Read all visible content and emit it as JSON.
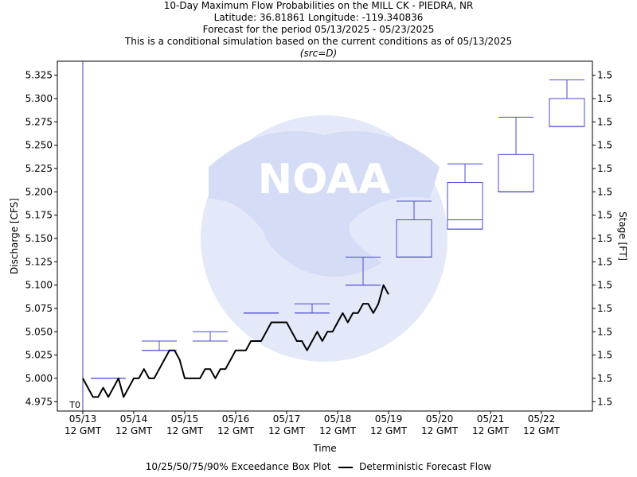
{
  "header": {
    "title": "10-Day Maximum Flow Probabilities on the MILL CK - PIEDRA, NR",
    "coords": "Latitude: 36.81861 Longitude: -119.340836",
    "period": "Forecast for the period 05/13/2025 - 05/23/2025",
    "note": "This is a conditional simulation based on the current conditions as of 05/13/2025",
    "src": "(src=D)"
  },
  "legend": {
    "box_label": "10/25/50/75/90% Exceedance Box Plot",
    "line_label": "Deterministic Forecast Flow"
  },
  "chart_data": {
    "type": "box+line",
    "xlabel": "Time",
    "ylabel": "Discharge [CFS]",
    "y2label": "Stage [FT]",
    "ylim": [
      4.965,
      5.34
    ],
    "left_ticks": [
      "4.975",
      "5.000",
      "5.025",
      "5.050",
      "5.075",
      "5.100",
      "5.125",
      "5.150",
      "5.175",
      "5.200",
      "5.225",
      "5.250",
      "5.275",
      "5.300",
      "5.325"
    ],
    "left_tick_values": [
      4.975,
      5.0,
      5.025,
      5.05,
      5.075,
      5.1,
      5.125,
      5.15,
      5.175,
      5.2,
      5.225,
      5.25,
      5.275,
      5.3,
      5.325
    ],
    "right_tick_labels": [
      "1.5",
      "1.5",
      "1.5",
      "1.5",
      "1.5",
      "1.5",
      "1.5",
      "1.5",
      "1.5",
      "1.5",
      "1.5",
      "1.5",
      "1.5",
      "1.5",
      "1.5"
    ],
    "x_ticks": [
      {
        "day": 0,
        "date": "05/13",
        "time": "12 GMT"
      },
      {
        "day": 1,
        "date": "05/14",
        "time": "12 GMT"
      },
      {
        "day": 2,
        "date": "05/15",
        "time": "12 GMT"
      },
      {
        "day": 3,
        "date": "05/16",
        "time": "12 GMT"
      },
      {
        "day": 4,
        "date": "05/17",
        "time": "12 GMT"
      },
      {
        "day": 5,
        "date": "05/18",
        "time": "12 GMT"
      },
      {
        "day": 6,
        "date": "05/19",
        "time": "12 GMT"
      },
      {
        "day": 7,
        "date": "05/20",
        "time": "12 GMT"
      },
      {
        "day": 8,
        "date": "05/21",
        "time": "12 GMT"
      },
      {
        "day": 9,
        "date": "05/22",
        "time": "12 GMT"
      }
    ],
    "t0_label": "T0",
    "xlim_days": [
      -0.5,
      10.0
    ],
    "boxes": [
      {
        "day": 0.5,
        "p10": 5.0,
        "p25": 5.0,
        "p50": 5.0,
        "p75": 5.0,
        "p90": 5.0
      },
      {
        "day": 1.5,
        "p10": 5.03,
        "p25": 5.03,
        "p50": 5.03,
        "p75": 5.03,
        "p90": 5.04
      },
      {
        "day": 2.5,
        "p10": 5.04,
        "p25": 5.04,
        "p50": 5.04,
        "p75": 5.04,
        "p90": 5.05
      },
      {
        "day": 3.5,
        "p10": 5.07,
        "p25": 5.07,
        "p50": 5.07,
        "p75": 5.07,
        "p90": 5.07
      },
      {
        "day": 4.5,
        "p10": 5.07,
        "p25": 5.07,
        "p50": 5.07,
        "p75": 5.07,
        "p90": 5.08
      },
      {
        "day": 5.5,
        "p10": 5.1,
        "p25": 5.1,
        "p50": 5.1,
        "p75": 5.1,
        "p90": 5.13
      },
      {
        "day": 6.5,
        "p10": 5.13,
        "p25": 5.13,
        "p50": 5.13,
        "p75": 5.17,
        "p90": 5.19
      },
      {
        "day": 7.5,
        "p10": 5.16,
        "p25": 5.16,
        "p50": 5.17,
        "p75": 5.21,
        "p90": 5.23
      },
      {
        "day": 8.5,
        "p10": 5.2,
        "p25": 5.2,
        "p50": 5.2,
        "p75": 5.24,
        "p90": 5.28
      },
      {
        "day": 9.5,
        "p10": 5.27,
        "p25": 5.27,
        "p50": 5.27,
        "p75": 5.3,
        "p90": 5.32
      }
    ],
    "line_day": [
      0,
      0.1,
      0.2,
      0.3,
      0.4,
      0.5,
      0.6,
      0.7,
      0.8,
      0.9,
      1.0,
      1.1,
      1.2,
      1.3,
      1.4,
      1.5,
      1.6,
      1.7,
      1.8,
      1.9,
      2.0,
      2.1,
      2.2,
      2.3,
      2.4,
      2.5,
      2.6,
      2.7,
      2.8,
      2.9,
      3.0,
      3.1,
      3.2,
      3.3,
      3.4,
      3.5,
      3.6,
      3.7,
      3.8,
      3.9,
      4.0,
      4.1,
      4.2,
      4.3,
      4.4,
      4.5,
      4.6,
      4.7,
      4.8,
      4.9,
      5.0,
      5.1,
      5.2,
      5.3,
      5.4,
      5.5,
      5.6,
      5.7,
      5.8,
      5.9,
      6.0
    ],
    "line_flow": [
      5.0,
      4.99,
      4.98,
      4.98,
      4.99,
      4.98,
      4.99,
      5.0,
      4.98,
      4.99,
      5.0,
      5.0,
      5.01,
      5.0,
      5.0,
      5.01,
      5.02,
      5.03,
      5.03,
      5.02,
      5.0,
      5.0,
      5.0,
      5.0,
      5.01,
      5.01,
      5.0,
      5.01,
      5.01,
      5.02,
      5.03,
      5.03,
      5.03,
      5.04,
      5.04,
      5.04,
      5.05,
      5.06,
      5.06,
      5.06,
      5.06,
      5.05,
      5.04,
      5.04,
      5.03,
      5.04,
      5.05,
      5.04,
      5.05,
      5.05,
      5.06,
      5.07,
      5.06,
      5.07,
      5.07,
      5.08,
      5.08,
      5.07,
      5.08,
      5.1,
      5.09
    ]
  },
  "colors": {
    "box": "#4a4ad0",
    "line": "#000000",
    "axis": "#000000",
    "watermark": "#dde4f8",
    "watermark_text": "#c4cdef"
  }
}
